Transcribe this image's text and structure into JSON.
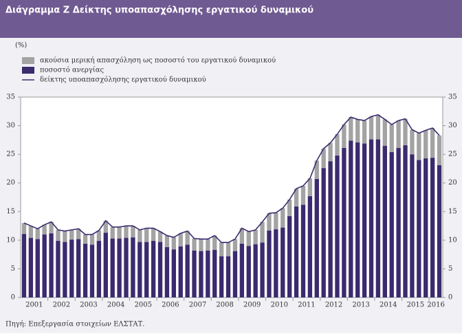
{
  "chart_data": {
    "type": "stacked-bar-line",
    "title": "Διάγραμμα Ζ  Δείκτης υποαπασχόλησης εργατικού δυναμικού",
    "unit_label": "(%)",
    "source": "Πηγή: Επεξεργασία στοιχείων ΕΛΣΤΑΤ.",
    "x": [
      "2001",
      "2001",
      "2001",
      "2001",
      "2002",
      "2002",
      "2002",
      "2002",
      "2003",
      "2003",
      "2003",
      "2003",
      "2004",
      "2004",
      "2004",
      "2004",
      "2005",
      "2005",
      "2005",
      "2005",
      "2006",
      "2006",
      "2006",
      "2006",
      "2007",
      "2007",
      "2007",
      "2007",
      "2008",
      "2008",
      "2008",
      "2008",
      "2009",
      "2009",
      "2009",
      "2009",
      "2010",
      "2010",
      "2010",
      "2010",
      "2011",
      "2011",
      "2011",
      "2011",
      "2012",
      "2012",
      "2012",
      "2012",
      "2013",
      "2013",
      "2013",
      "2013",
      "2014",
      "2014",
      "2014",
      "2014",
      "2015",
      "2015",
      "2015",
      "2015",
      "2016",
      "2016"
    ],
    "series": [
      {
        "name": "ποσοστό ανεργίας",
        "color": "#3b2a6e",
        "kind": "bar",
        "values": [
          11.1,
          10.4,
          10.2,
          11.0,
          11.2,
          9.9,
          9.7,
          10.1,
          10.2,
          9.4,
          9.2,
          9.9,
          11.3,
          10.3,
          10.3,
          10.4,
          10.5,
          9.7,
          9.7,
          9.9,
          9.7,
          8.8,
          8.4,
          8.9,
          9.2,
          8.2,
          8.1,
          8.2,
          8.3,
          7.2,
          7.2,
          8.1,
          9.4,
          9.0,
          9.3,
          9.6,
          11.7,
          11.9,
          12.2,
          14.2,
          15.9,
          16.2,
          17.7,
          20.7,
          22.6,
          23.8,
          24.8,
          26.1,
          27.4,
          27.1,
          26.9,
          27.6,
          27.6,
          26.5,
          25.4,
          26.1,
          26.6,
          25.0,
          24.0,
          24.3,
          24.4,
          23.1
        ]
      },
      {
        "name": "ακούσια μερική απασχόληση ως ποσοστό του εργατικού δυναμικού",
        "color": "#a3a3a3",
        "kind": "bar",
        "values": [
          1.9,
          2.1,
          1.8,
          1.7,
          2.0,
          1.9,
          1.9,
          1.7,
          1.8,
          1.6,
          1.8,
          1.8,
          2.1,
          2.0,
          2.0,
          2.1,
          2.0,
          2.1,
          2.4,
          2.2,
          1.8,
          2.0,
          2.1,
          2.3,
          2.4,
          2.1,
          2.1,
          2.0,
          2.5,
          2.4,
          2.4,
          2.1,
          2.7,
          2.5,
          2.5,
          3.6,
          3.0,
          2.9,
          3.4,
          2.9,
          3.1,
          3.3,
          3.1,
          3.2,
          3.4,
          3.2,
          3.7,
          4.1,
          4.1,
          4.0,
          4.0,
          4.0,
          4.3,
          4.6,
          4.8,
          4.8,
          4.6,
          4.3,
          4.7,
          4.9,
          5.2,
          5.2
        ]
      },
      {
        "name": "δείκτης υποαπασχόλησης εργατικού δυναμικού",
        "color": "#3b2a6e",
        "kind": "line",
        "values": [
          13.0,
          12.5,
          12.0,
          12.7,
          13.2,
          11.8,
          11.6,
          11.8,
          12.0,
          11.0,
          11.0,
          11.7,
          13.4,
          12.3,
          12.3,
          12.5,
          12.5,
          11.8,
          12.1,
          12.1,
          11.5,
          10.8,
          10.5,
          11.2,
          11.6,
          10.3,
          10.2,
          10.2,
          10.8,
          9.6,
          9.6,
          10.2,
          12.1,
          11.5,
          11.8,
          13.2,
          14.7,
          14.8,
          15.6,
          17.1,
          19.0,
          19.5,
          20.8,
          23.9,
          26.0,
          27.0,
          28.5,
          30.2,
          31.5,
          31.1,
          30.9,
          31.6,
          31.9,
          31.1,
          30.2,
          30.9,
          31.2,
          29.3,
          28.7,
          29.2,
          29.6,
          28.3
        ]
      }
    ],
    "ylim": [
      0,
      35
    ],
    "yticks": [
      0,
      5,
      10,
      15,
      20,
      25,
      30,
      35
    ],
    "y2lim": [
      0,
      35
    ],
    "y2ticks": [
      0,
      5,
      10,
      15,
      20,
      25,
      30,
      35
    ],
    "legend_order": [
      1,
      0,
      2
    ]
  }
}
